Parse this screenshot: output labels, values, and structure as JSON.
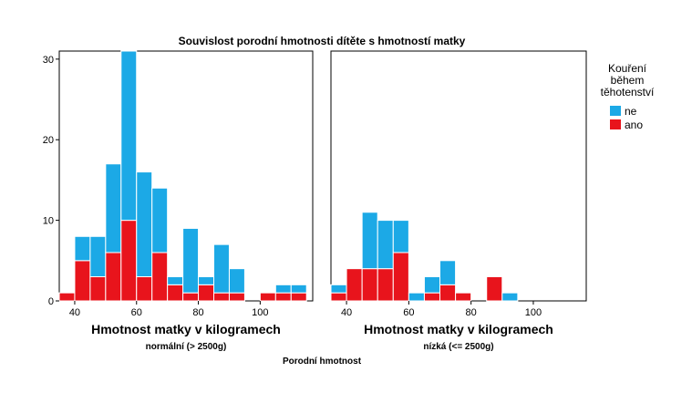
{
  "chart_data": {
    "type": "histogram",
    "title": "Souvislost porodní hmotnosti dítěte s hmotností matky",
    "xlabel": "Hmotnost matky v kilogramech",
    "ylabel": "",
    "facet_label": "Porodní hmotnost",
    "stacked": true,
    "bin_width": 5,
    "bin_starts": [
      35,
      40,
      45,
      50,
      55,
      60,
      65,
      70,
      75,
      80,
      85,
      90,
      95,
      100,
      105,
      110
    ],
    "xlim": [
      35,
      117
    ],
    "ylim": [
      0,
      31
    ],
    "x_ticks": [
      40,
      60,
      80,
      100
    ],
    "y_ticks": [
      0,
      10,
      20,
      30
    ],
    "legend": {
      "title": "Kouření během těhotenství",
      "title_lines": [
        "Kouření",
        "během",
        "těhotenství"
      ],
      "position": "right",
      "entries": [
        "ne",
        "ano"
      ]
    },
    "colors": {
      "ne": "#1ca9e6",
      "ano": "#e8141c"
    },
    "panels": [
      {
        "label": "normální (> 2500g)",
        "series": [
          {
            "name": "ano",
            "values": [
              1,
              5,
              3,
              6,
              10,
              3,
              6,
              2,
              1,
              2,
              1,
              1,
              0,
              1,
              1,
              1
            ]
          },
          {
            "name": "ne",
            "values": [
              0,
              3,
              5,
              11,
              21,
              13,
              8,
              1,
              8,
              1,
              6,
              3,
              0,
              0,
              1,
              1
            ]
          }
        ]
      },
      {
        "label": "nízká (<= 2500g)",
        "series": [
          {
            "name": "ano",
            "values": [
              1,
              4,
              4,
              4,
              6,
              0,
              1,
              2,
              1,
              0,
              3,
              0,
              0,
              0,
              0,
              0
            ]
          },
          {
            "name": "ne",
            "values": [
              1,
              0,
              7,
              6,
              4,
              1,
              2,
              3,
              0,
              0,
              0,
              1,
              0,
              0,
              0,
              0
            ]
          }
        ]
      }
    ]
  }
}
